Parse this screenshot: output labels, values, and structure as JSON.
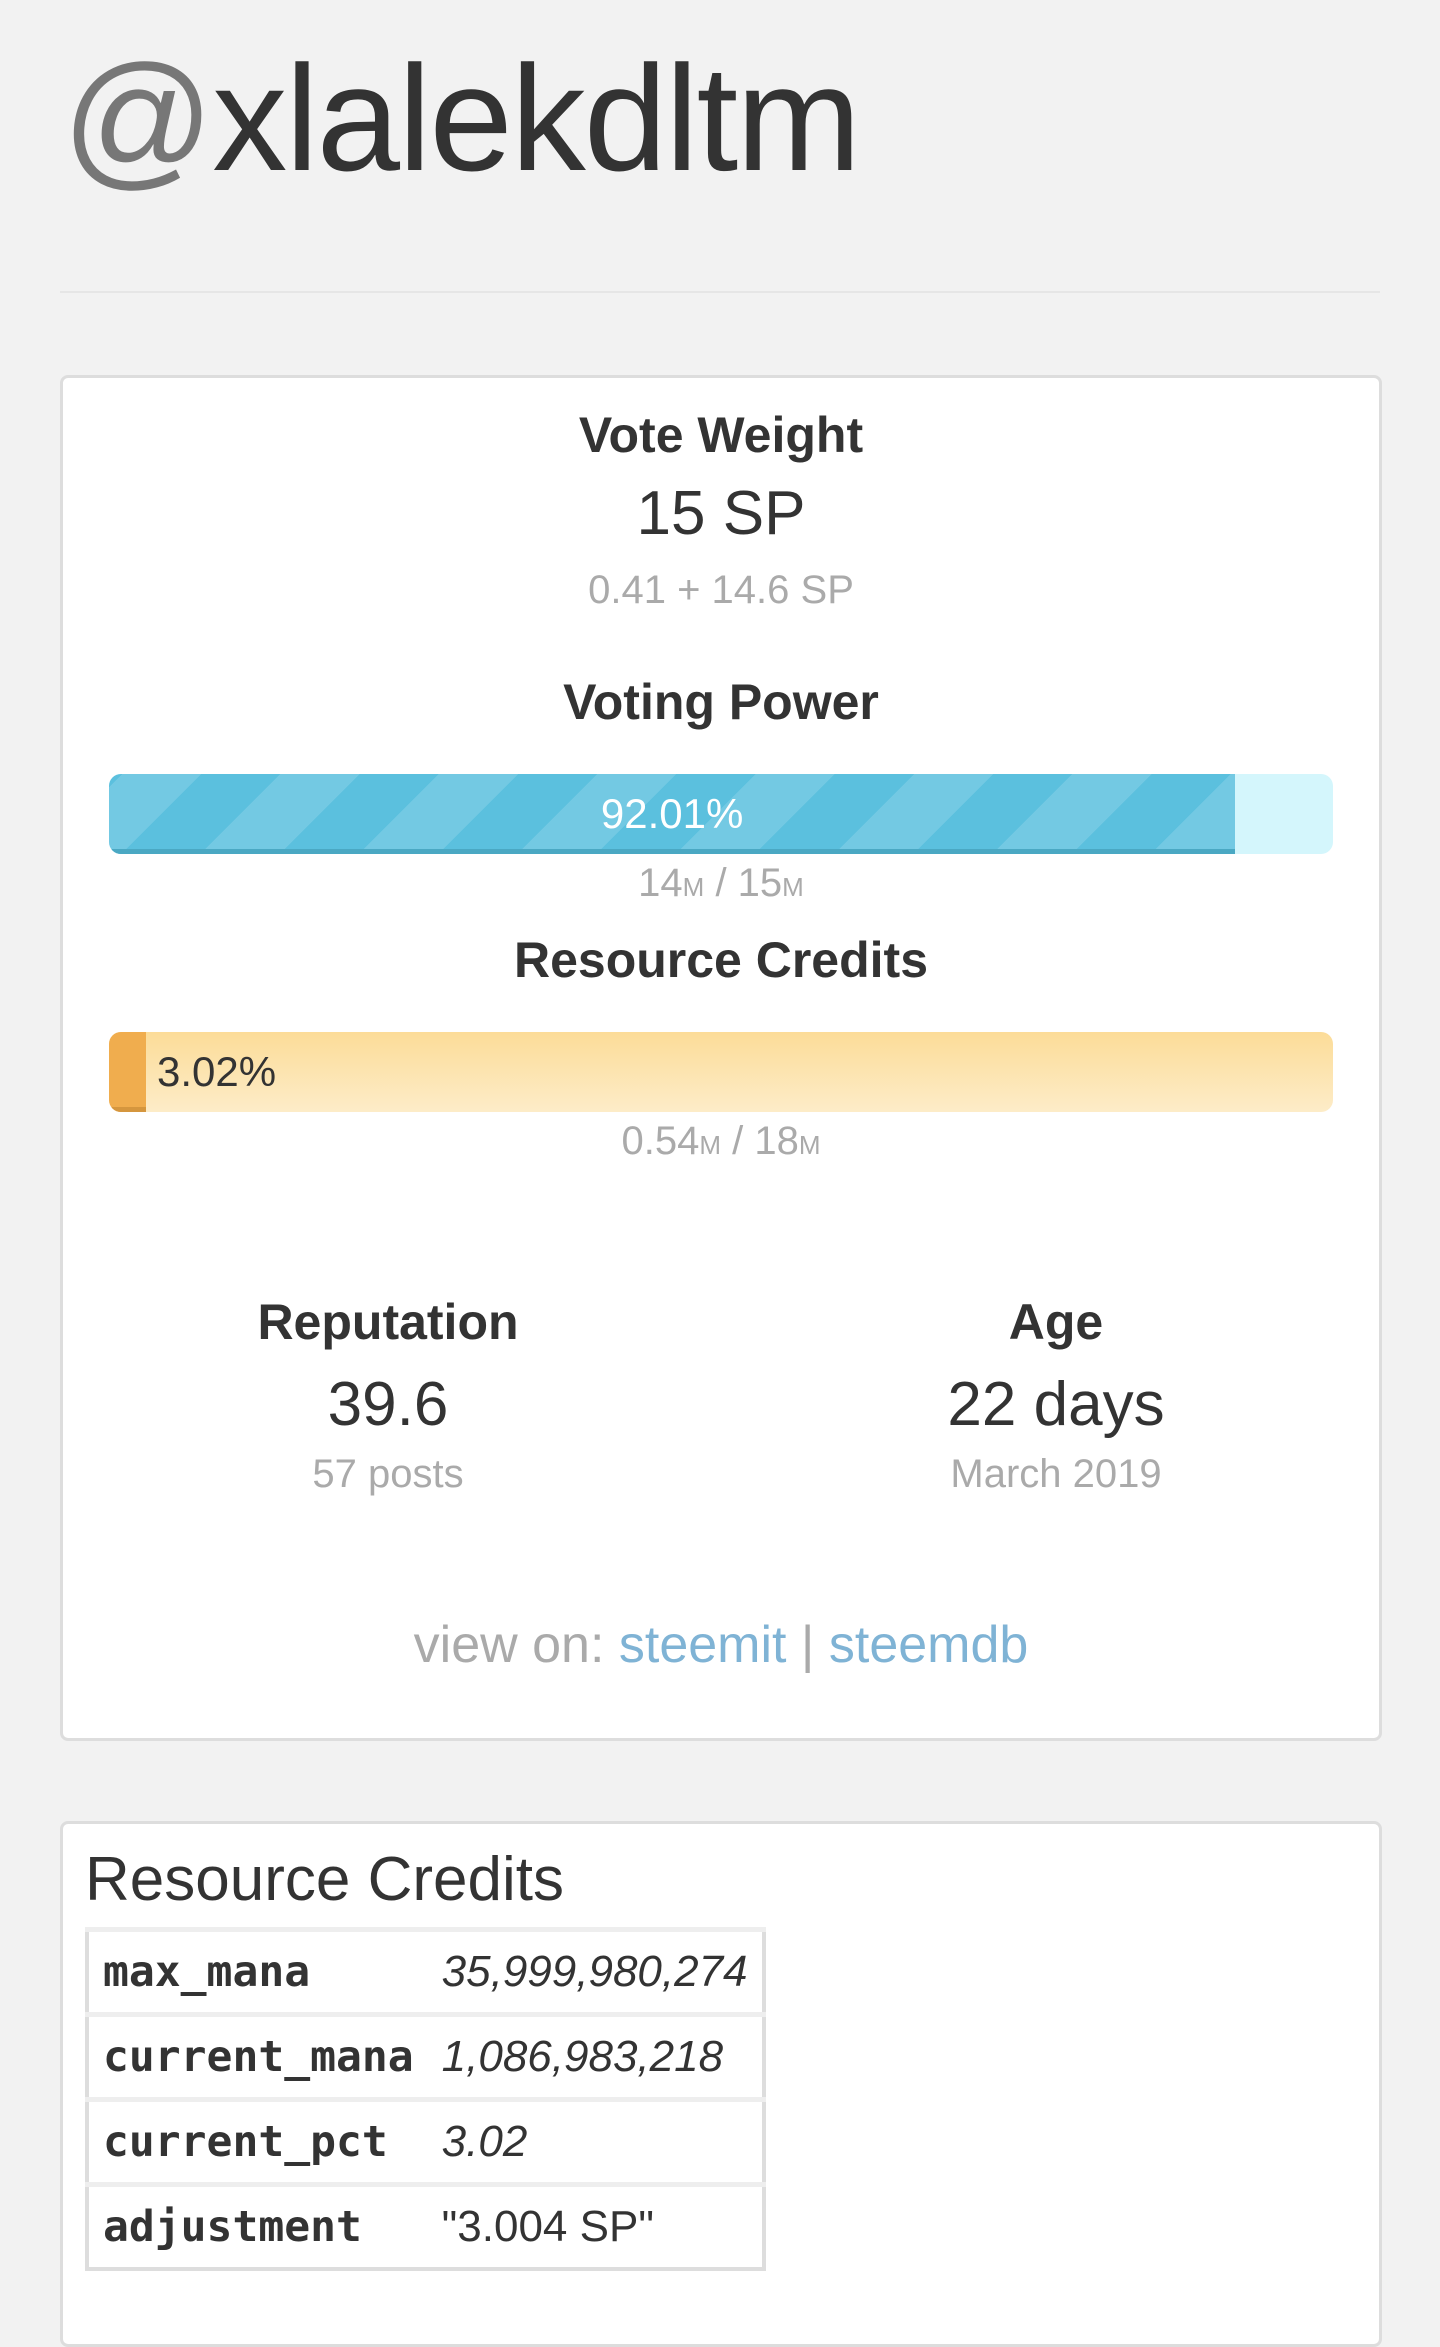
{
  "account": {
    "at": "@",
    "name": "xlalekdltm"
  },
  "vote_weight": {
    "heading": "Vote Weight",
    "value": "15 SP",
    "detail": "0.41 + 14.6 SP"
  },
  "voting_power": {
    "heading": "Voting Power",
    "percent": 92.01,
    "label": "92.01%",
    "current": "14",
    "max": "15",
    "unit": "M",
    "sep": " / ",
    "color": "#5bc0de"
  },
  "resource_credits": {
    "heading": "Resource Credits",
    "percent": 3.02,
    "label": "3.02%",
    "current": "0.54",
    "max": "18",
    "unit": "M",
    "sep": " / ",
    "color": "#f0ad4e"
  },
  "reputation": {
    "heading": "Reputation",
    "value": "39.6",
    "detail": "57 posts"
  },
  "age": {
    "heading": "Age",
    "value": "22 days",
    "detail": "March 2019"
  },
  "view_on": {
    "label": "view on: ",
    "links": [
      "steemit",
      "steemdb"
    ],
    "sep": " | "
  },
  "rc_table": {
    "title": "Resource Credits",
    "rows": [
      {
        "key": "max_mana",
        "value": "35,999,980,274"
      },
      {
        "key": "current_mana",
        "value": "1,086,983,218"
      },
      {
        "key": "current_pct",
        "value": "3.02"
      },
      {
        "key": "adjustment",
        "value": "\"3.004 SP\""
      }
    ]
  }
}
